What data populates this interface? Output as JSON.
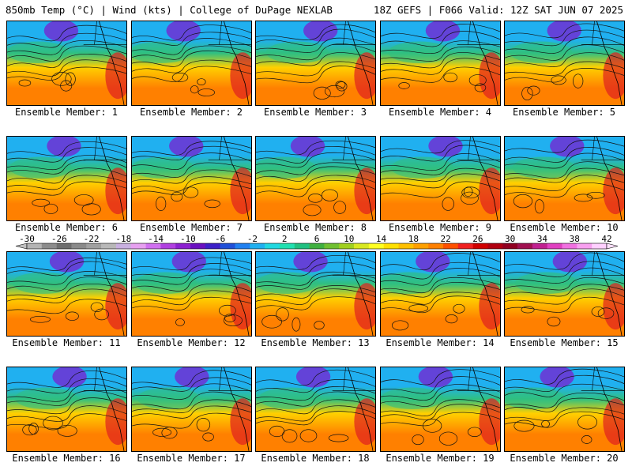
{
  "header": {
    "title_left": "850mb Temp (°C) | Wind (kts) | College of DuPage NEXLAB",
    "title_right": "18Z GEFS | F066 Valid: 12Z SAT JUN 07 2025"
  },
  "members": [
    "Ensemble Member: 1",
    "Ensemble Member: 2",
    "Ensemble Member: 3",
    "Ensemble Member: 4",
    "Ensemble Member: 5",
    "Ensemble Member: 6",
    "Ensemble Member: 7",
    "Ensemble Member: 8",
    "Ensemble Member: 9",
    "Ensemble Member: 10",
    "Ensemble Member: 11",
    "Ensemble Member: 12",
    "Ensemble Member: 13",
    "Ensemble Member: 14",
    "Ensemble Member: 15",
    "Ensemble Member: 16",
    "Ensemble Member: 17",
    "Ensemble Member: 18",
    "Ensemble Member: 19",
    "Ensemble Member: 20"
  ],
  "colorbar": {
    "tick_labels": [
      "-30",
      "-26",
      "-22",
      "-18",
      "-14",
      "-10",
      "-6",
      "-2",
      "2",
      "6",
      "10",
      "14",
      "18",
      "22",
      "26",
      "30",
      "34",
      "38",
      "42"
    ],
    "colors": [
      "#b4b4b4",
      "#8c8c8c",
      "#6e6e6e",
      "#8a8a8a",
      "#a0a0a0",
      "#b8b8b8",
      "#c8b0e0",
      "#e6a0f0",
      "#d070f0",
      "#b040e0",
      "#8c20d0",
      "#6a10c0",
      "#3c20c8",
      "#2050d8",
      "#2080f0",
      "#20b0f0",
      "#20d8e0",
      "#20e0b0",
      "#20c080",
      "#40b040",
      "#70c030",
      "#a0d020",
      "#d8e820",
      "#ffff20",
      "#ffe000",
      "#ffc000",
      "#ffa000",
      "#ff8000",
      "#ff5000",
      "#f02020",
      "#d00000",
      "#b00010",
      "#900020",
      "#a01050",
      "#c02090",
      "#e040c0",
      "#f070e0",
      "#f8a0f0",
      "#ffd0ff"
    ],
    "under_color": "#c0c0c0",
    "over_color": "#ffe0ff"
  },
  "palette": {
    "cold": "#7a1fd0",
    "cool": "#20b0f0",
    "mild": "#30c080",
    "warm": "#ffd000",
    "hot": "#ff8000",
    "very_hot": "#e02020"
  }
}
